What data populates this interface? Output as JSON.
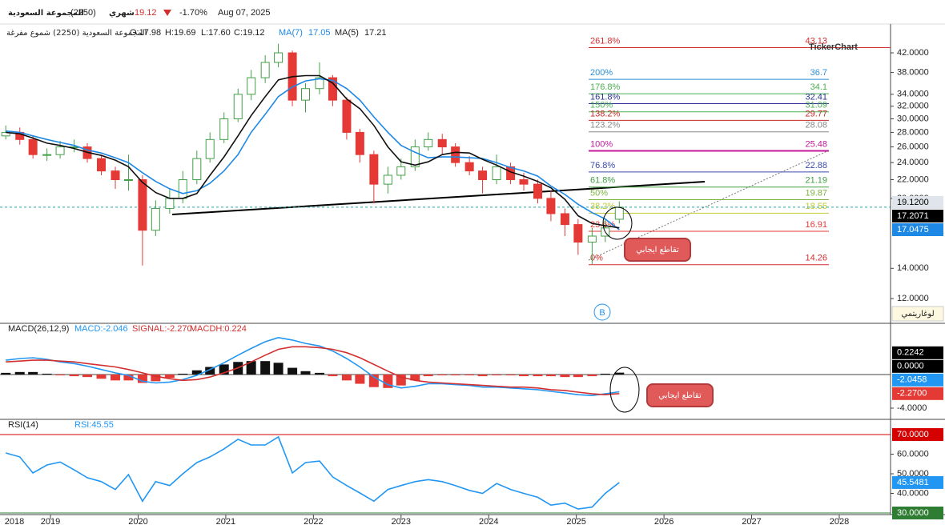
{
  "header": {
    "name": "المجموعة السعودية",
    "code": "(2250)",
    "period": "شهري",
    "price": 19.12,
    "change": "-1.70%",
    "date": "Aug 07, 2025",
    "subtitle": "المجموعة السعودية (2250) شموع مفرغة",
    "ohlc": [
      "O:17.98",
      "H:19.69",
      "L:17.60",
      "C:19.12"
    ]
  },
  "annotations": {
    "cross_label": "تقاطع ايجابي",
    "wave_label": "B",
    "log_label": "لوغاريتمي",
    "logo": "TickerChart"
  },
  "chart_data": [
    {
      "type": "candlestick",
      "x": [
        2018.49,
        2018.65,
        2018.8,
        2018.96,
        2019.11,
        2019.27,
        2019.42,
        2019.58,
        2019.74,
        2019.89,
        2020.05,
        2020.2,
        2020.36,
        2020.51,
        2020.67,
        2020.82,
        2020.98,
        2021.14,
        2021.29,
        2021.45,
        2021.6,
        2021.76,
        2021.91,
        2022.07,
        2022.22,
        2022.38,
        2022.53,
        2022.69,
        2022.85,
        2023.0,
        2023.16,
        2023.31,
        2023.47,
        2023.62,
        2023.78,
        2023.93,
        2024.09,
        2024.25,
        2024.4,
        2024.56,
        2024.71,
        2024.87,
        2025.02,
        2025.18,
        2025.33,
        2025.49
      ],
      "open": [
        27.5,
        28,
        27,
        25,
        25,
        26,
        26,
        24.5,
        23,
        22,
        22,
        17,
        19,
        20,
        22,
        24.5,
        27,
        30,
        34,
        37,
        40,
        42,
        33,
        35,
        37,
        33,
        28,
        25,
        21.5,
        22.5,
        23.5,
        26,
        27,
        26,
        24,
        23,
        22,
        23.5,
        22,
        21.5,
        20,
        18.5,
        17.5,
        16,
        16.5,
        17.98
      ],
      "high": [
        29,
        28.7,
        27.5,
        25.8,
        26.8,
        27,
        26.5,
        25,
        23.5,
        25,
        22.5,
        19.8,
        21,
        23,
        25.5,
        28,
        31,
        35,
        38.5,
        41.5,
        44,
        42.5,
        36,
        40,
        37.5,
        33.5,
        28.5,
        25.5,
        23.5,
        24.5,
        27,
        28,
        27.8,
        26.5,
        24.8,
        23.5,
        25,
        24,
        22.8,
        22,
        20.8,
        19,
        18,
        17.2,
        18,
        19.69
      ],
      "low": [
        27,
        26.3,
        24.5,
        24.2,
        24.5,
        25.3,
        24,
        22.5,
        21,
        20.8,
        14.2,
        16.5,
        18.5,
        19.5,
        21.5,
        24,
        26.5,
        29.5,
        33,
        36,
        39,
        32,
        31,
        34,
        32,
        27,
        24,
        19.5,
        20.5,
        22,
        23,
        25.5,
        25,
        23.5,
        22.5,
        20.5,
        21.5,
        21.5,
        20.8,
        19.5,
        17.8,
        16.5,
        15,
        14.3,
        16,
        17.6
      ],
      "close": [
        28,
        27,
        25,
        25,
        26,
        26,
        24.5,
        23,
        22,
        22,
        17,
        19,
        20,
        22,
        24.5,
        27,
        30,
        34,
        37,
        40,
        42,
        33,
        35,
        37,
        33,
        28,
        25,
        21.5,
        22.5,
        23.5,
        26,
        27,
        26,
        24,
        23,
        22,
        23.5,
        22,
        21.5,
        20,
        18.5,
        17.5,
        16,
        16.5,
        17.2,
        19.12
      ],
      "up_color": "#43a047",
      "down_color": "#e53935",
      "series": [
        {
          "name": "MA(7)",
          "color": "#1e88e5",
          "values": [
            28.2,
            28,
            27.5,
            27,
            26.6,
            26.2,
            25.6,
            25.2,
            24.6,
            24,
            22.8,
            21.8,
            21,
            20.5,
            20.8,
            21.6,
            23,
            25,
            28,
            30.7,
            33.6,
            35.3,
            36.4,
            36.8,
            36.5,
            35,
            33,
            30.3,
            28,
            26.2,
            25.3,
            24.6,
            24.7,
            24.7,
            24.6,
            24.5,
            24,
            23.4,
            23,
            22.4,
            21.3,
            20.4,
            19.4,
            18.6,
            18,
            17.05
          ]
        },
        {
          "name": "MA(5)",
          "color": "#111111",
          "values": [
            28,
            27.8,
            27.2,
            26.5,
            26.2,
            25.8,
            25.3,
            24.9,
            24.3,
            23.5,
            21.7,
            20.6,
            20,
            20,
            20.5,
            22.5,
            24.7,
            27.5,
            30.5,
            33.6,
            36.6,
            37.2,
            37.4,
            37.4,
            36,
            33.2,
            31.6,
            29,
            26,
            24.1,
            23.7,
            24.1,
            25,
            25.3,
            25.2,
            24.4,
            23.7,
            22.9,
            22.4,
            21.8,
            21.1,
            19.9,
            18.3,
            17.6,
            17.4,
            17.21
          ]
        }
      ],
      "xlim": [
        2018.424,
        2028.585
      ],
      "xticks": [
        2018,
        2019,
        2020,
        2021,
        2022,
        2023,
        2024,
        2025,
        2026,
        2027,
        2028
      ],
      "ylim": [
        10.62,
        47.67
      ],
      "log_scale": true,
      "yticks": [
        {
          "value": 12,
          "label": "12.0000"
        },
        {
          "value": 14,
          "label": "14.0000"
        },
        {
          "value": 20,
          "label": "20.0000"
        },
        {
          "value": 22,
          "label": "22.0000"
        },
        {
          "value": 24,
          "label": "24.0000"
        },
        {
          "value": 26,
          "label": "26.0000"
        },
        {
          "value": 28,
          "label": "28.0000"
        },
        {
          "value": 30,
          "label": "30.0000"
        },
        {
          "value": 32,
          "label": "32.0000"
        },
        {
          "value": 34,
          "label": "34.0000"
        },
        {
          "value": 38,
          "label": "38.0000"
        },
        {
          "value": 42,
          "label": "42.0000"
        }
      ],
      "fib_levels": [
        {
          "label": "261.8%",
          "value": 43.13,
          "color": "#d32f2f"
        },
        {
          "label": "200%",
          "value": 36.7,
          "color": "#2a8fd6"
        },
        {
          "label": "176.8%",
          "value": 34.1,
          "color": "#4caf50"
        },
        {
          "label": "161.8%",
          "value": 32.41,
          "color": "#283593"
        },
        {
          "label": "150%",
          "value": 31.09,
          "color": "#4caf50"
        },
        {
          "label": "138.2%",
          "value": 29.77,
          "color": "#c62828"
        },
        {
          "label": "123.2%",
          "value": 28.08,
          "color": "#888888"
        },
        {
          "label": "100%",
          "value": 25.48,
          "color": "#c2189b"
        },
        {
          "label": "76.8%",
          "value": 22.88,
          "color": "#3949ab"
        },
        {
          "label": "61.8%",
          "value": 21.19,
          "color": "#43a047"
        },
        {
          "label": "50%",
          "value": 19.87,
          "color": "#7cb342"
        },
        {
          "label": "38.2%",
          "value": 18.55,
          "color": "#c0ca33"
        },
        {
          "label": "23.6%",
          "value": 16.91,
          "color": "#e53935"
        },
        {
          "label": "0%",
          "value": 14.26,
          "color": "#d32f2f"
        }
      ],
      "last_labels": [
        {
          "value": 19.12,
          "label": "19.1200",
          "color": "#dfe5ea",
          "text_color": "#000000"
        },
        {
          "value": 17.2071,
          "label": "17.2071",
          "color": "#000000",
          "text_color": "#ffffff"
        },
        {
          "value": 17.0475,
          "label": "17.0475",
          "color": "#1e88e5",
          "text_color": "#ffffff"
        }
      ]
    },
    {
      "type": "macd",
      "title": "MACD(26,12,9)",
      "legend": [
        "MACD:-2.046",
        "SIGNAL:-2.270",
        "MACDH:0.224"
      ],
      "x": [
        2018.49,
        2018.65,
        2018.8,
        2018.96,
        2019.11,
        2019.27,
        2019.42,
        2019.58,
        2019.74,
        2019.89,
        2020.05,
        2020.2,
        2020.36,
        2020.51,
        2020.67,
        2020.82,
        2020.98,
        2021.14,
        2021.29,
        2021.45,
        2021.6,
        2021.76,
        2021.91,
        2022.07,
        2022.22,
        2022.38,
        2022.53,
        2022.69,
        2022.85,
        2023.0,
        2023.16,
        2023.31,
        2023.47,
        2023.62,
        2023.78,
        2023.93,
        2024.09,
        2024.25,
        2024.4,
        2024.56,
        2024.71,
        2024.87,
        2025.02,
        2025.18,
        2025.33,
        2025.49
      ],
      "series": [
        {
          "kind": "bar",
          "color": "#111111",
          "negative_color": "#e53935",
          "values": [
            0.2,
            0.3,
            0.3,
            0.1,
            -0.1,
            -0.2,
            -0.3,
            -0.5,
            -0.7,
            -0.7,
            -1.0,
            -0.8,
            -0.4,
            0.1,
            0.5,
            0.9,
            1.2,
            1.5,
            1.6,
            1.6,
            1.4,
            0.8,
            0.4,
            0.2,
            -0.2,
            -0.7,
            -1.1,
            -1.5,
            -1.6,
            -1.3,
            -0.7,
            -0.2,
            -0.1,
            -0.1,
            -0.1,
            -0.2,
            -0.1,
            -0.1,
            -0.2,
            -0.2,
            -0.2,
            -0.3,
            -0.3,
            -0.2,
            0.1,
            0.224
          ]
        },
        {
          "kind": "line",
          "color": "#2196f3",
          "values": [
            1.7,
            1.9,
            2.0,
            1.8,
            1.5,
            1.3,
            1.0,
            0.6,
            0.2,
            -0.1,
            -0.8,
            -1.0,
            -0.9,
            -0.6,
            -0.1,
            0.6,
            1.4,
            2.3,
            3.1,
            3.9,
            4.4,
            4.1,
            3.7,
            3.4,
            2.8,
            1.9,
            0.9,
            -0.3,
            -1.2,
            -1.6,
            -1.4,
            -1.1,
            -1.1,
            -1.2,
            -1.3,
            -1.5,
            -1.5,
            -1.6,
            -1.7,
            -1.8,
            -2.0,
            -2.2,
            -2.4,
            -2.5,
            -2.3,
            -2.046
          ]
        },
        {
          "kind": "line",
          "color": "#d32f2f",
          "values": [
            1.5,
            1.6,
            1.7,
            1.7,
            1.6,
            1.5,
            1.3,
            1.1,
            0.9,
            0.6,
            0.2,
            -0.2,
            -0.5,
            -0.7,
            -0.6,
            -0.3,
            0.2,
            0.8,
            1.5,
            2.3,
            3.0,
            3.3,
            3.3,
            3.2,
            3.0,
            2.6,
            2.0,
            1.2,
            0.4,
            -0.3,
            -0.7,
            -0.9,
            -1.0,
            -1.1,
            -1.2,
            -1.3,
            -1.4,
            -1.5,
            -1.5,
            -1.6,
            -1.8,
            -1.9,
            -2.1,
            -2.3,
            -2.4,
            -2.27
          ]
        }
      ],
      "ylim": [
        -5.24,
        6.0
      ],
      "yticks": [
        {
          "value": -4,
          "label": "-4.0000"
        }
      ],
      "last_labels": [
        {
          "value": 0.2242,
          "label": "0.2242",
          "color": "#000000",
          "text_color": "#ffffff"
        },
        {
          "value": 0,
          "label": "0.0000",
          "color": "#000000",
          "text_color": "#ffffff"
        },
        {
          "value": -2.0458,
          "label": "-2.0458",
          "color": "#2196f3",
          "text_color": "#ffffff"
        },
        {
          "value": -2.27,
          "label": "-2.2700",
          "color": "#e53935",
          "text_color": "#ffffff"
        }
      ]
    },
    {
      "type": "line",
      "title": "RSI(14)",
      "legend": [
        "RSI:45.55"
      ],
      "x": [
        2018.49,
        2018.65,
        2018.8,
        2018.96,
        2019.11,
        2019.27,
        2019.42,
        2019.58,
        2019.74,
        2019.89,
        2020.05,
        2020.2,
        2020.36,
        2020.51,
        2020.67,
        2020.82,
        2020.98,
        2021.14,
        2021.29,
        2021.45,
        2021.6,
        2021.76,
        2021.91,
        2022.07,
        2022.22,
        2022.38,
        2022.53,
        2022.69,
        2022.85,
        2023.0,
        2023.16,
        2023.31,
        2023.47,
        2023.62,
        2023.78,
        2023.93,
        2024.09,
        2024.25,
        2024.4,
        2024.56,
        2024.71,
        2024.87,
        2025.02,
        2025.18,
        2025.33,
        2025.49
      ],
      "series": [
        {
          "kind": "line",
          "color": "#2196f3",
          "values": [
            60.6,
            58.6,
            50.4,
            54.5,
            56,
            52,
            48,
            46,
            42,
            49.6,
            36,
            46,
            44,
            50,
            55.7,
            58.6,
            62.7,
            67.6,
            64.7,
            64.7,
            68.8,
            50.4,
            55.7,
            56.5,
            48.4,
            44,
            40.2,
            36,
            42,
            44,
            46,
            47,
            46,
            44,
            41.5,
            40,
            45,
            42,
            40,
            38,
            34,
            35,
            32,
            33,
            40,
            45.55
          ]
        }
      ],
      "ylim": [
        29.18,
        77.35
      ],
      "yticks": [
        {
          "value": 40,
          "label": "40.0000"
        },
        {
          "value": 50,
          "label": "50.0000"
        },
        {
          "value": 60,
          "label": "60.0000"
        }
      ],
      "levels": [
        {
          "value": 70,
          "label": "70.0000",
          "color": "#d50000"
        },
        {
          "value": 30,
          "label": "30.0000",
          "color": "#2e7d32"
        }
      ],
      "last_labels": [
        {
          "value": 45.5481,
          "label": "45.5481",
          "color": "#2196f3",
          "text_color": "#ffffff"
        }
      ]
    }
  ]
}
